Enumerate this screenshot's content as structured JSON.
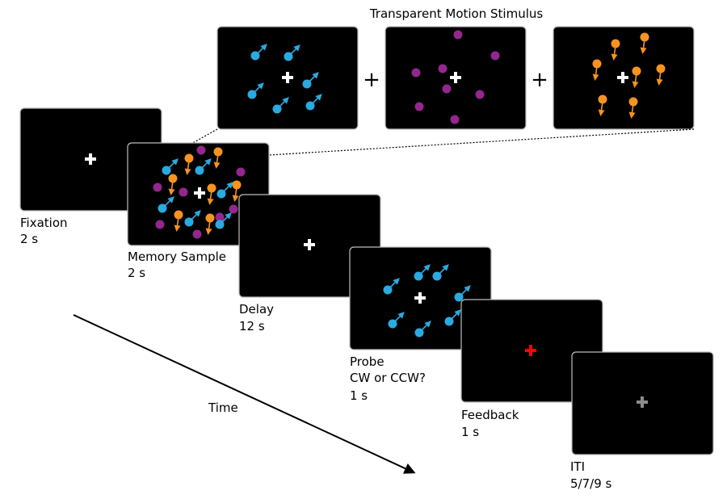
{
  "title": "Transparent Motion Stimulus",
  "plus_sign": "+",
  "time_label": "Time",
  "colors": {
    "screen_bg": "#000000",
    "blue": "#29abe2",
    "purple": "#93278f",
    "orange": "#f7931e",
    "fixation_white": "#ffffff",
    "feedback_red": "#ff0000",
    "iti_gray": "#8c8c8c"
  },
  "stages": [
    {
      "name": "Fixation",
      "duration": "2 s"
    },
    {
      "name": "Memory Sample",
      "duration": "2 s"
    },
    {
      "name": "Delay",
      "duration": "12 s"
    },
    {
      "name": "Probe",
      "question": "CW or CCW?",
      "duration": "1 s"
    },
    {
      "name": "Feedback",
      "duration": "1 s"
    },
    {
      "name": "ITI",
      "duration": "5/7/9 s"
    }
  ],
  "components": [
    {
      "name": "blue-upward-motion",
      "color": "blue",
      "motion": "up-right"
    },
    {
      "name": "purple-static",
      "color": "purple",
      "motion": "none"
    },
    {
      "name": "orange-downward-motion",
      "color": "orange",
      "motion": "down"
    }
  ]
}
